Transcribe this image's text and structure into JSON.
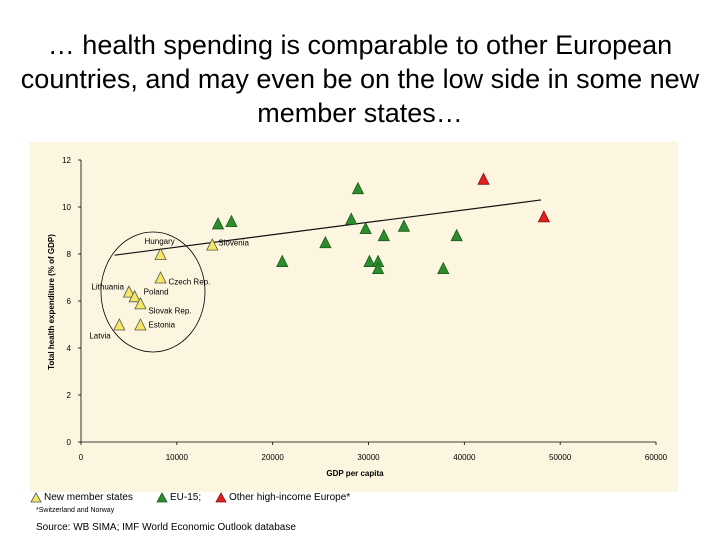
{
  "title": "… health spending is comparable to other European countries, and may even be on the low side in some new member states…",
  "chart_data": {
    "type": "scatter",
    "xlabel": "GDP per capita",
    "ylabel": "Total health expenditure (% of GDP)",
    "xlim": [
      0,
      60000
    ],
    "ylim": [
      0,
      12
    ],
    "x_ticks": [
      0,
      10000,
      20000,
      30000,
      40000,
      50000,
      60000
    ],
    "y_ticks": [
      0,
      2,
      4,
      6,
      8,
      10,
      12
    ],
    "grid": false,
    "legend_position": "bottom",
    "trendline": {
      "x": [
        3500,
        48000
      ],
      "y": [
        7.95,
        10.3
      ]
    },
    "series": [
      {
        "name": "New member states",
        "color": "#f5e663",
        "points": [
          {
            "x": 8300,
            "y": 8.0,
            "label": "Hungary"
          },
          {
            "x": 13700,
            "y": 8.4,
            "label": "Slovenia"
          },
          {
            "x": 8300,
            "y": 7.0,
            "label": "Czech Rep."
          },
          {
            "x": 5000,
            "y": 6.4,
            "label": "Lithuania"
          },
          {
            "x": 5600,
            "y": 6.2,
            "label": "Poland"
          },
          {
            "x": 6200,
            "y": 5.9,
            "label": "Slovak Rep."
          },
          {
            "x": 6200,
            "y": 5.0,
            "label": "Estonia"
          },
          {
            "x": 4000,
            "y": 5.0,
            "label": "Latvia"
          }
        ]
      },
      {
        "name": "EU-15;",
        "color": "#2e8b2e",
        "points": [
          {
            "x": 14300,
            "y": 9.3
          },
          {
            "x": 15700,
            "y": 9.4
          },
          {
            "x": 21000,
            "y": 7.7
          },
          {
            "x": 25500,
            "y": 8.5
          },
          {
            "x": 28200,
            "y": 9.5
          },
          {
            "x": 28900,
            "y": 10.8
          },
          {
            "x": 29700,
            "y": 9.1
          },
          {
            "x": 30100,
            "y": 7.7
          },
          {
            "x": 31000,
            "y": 7.7
          },
          {
            "x": 31000,
            "y": 7.4
          },
          {
            "x": 31600,
            "y": 8.8
          },
          {
            "x": 33700,
            "y": 9.2
          },
          {
            "x": 37800,
            "y": 7.4
          },
          {
            "x": 39200,
            "y": 8.8
          }
        ]
      },
      {
        "name": "Other high-income Europe*",
        "color": "#e02020",
        "points": [
          {
            "x": 42000,
            "y": 11.2
          },
          {
            "x": 48300,
            "y": 9.6
          }
        ]
      }
    ]
  },
  "footnote": "*Switzerland and Norway",
  "source": "Source: WB SIMA; IMF World Economic Outlook database"
}
